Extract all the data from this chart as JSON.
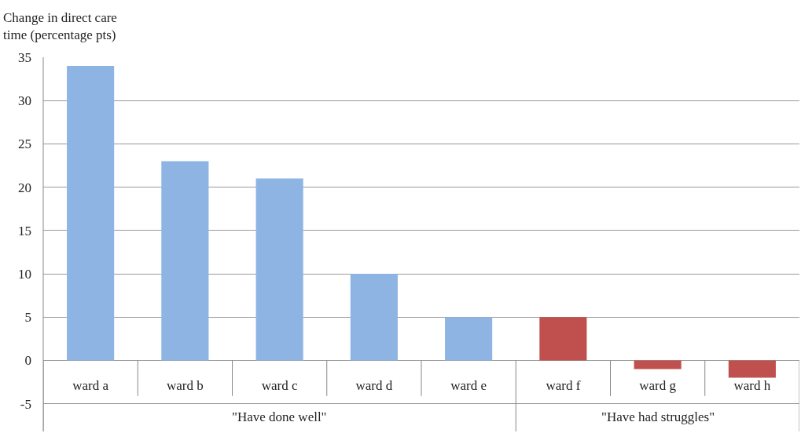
{
  "chart_data": {
    "type": "bar",
    "ylabel": "Change in direct care\ntime (percentage pts)",
    "categories": [
      "ward a",
      "ward b",
      "ward c",
      "ward d",
      "ward e",
      "ward f",
      "ward g",
      "ward h"
    ],
    "values": [
      34,
      23,
      21,
      10,
      5,
      5,
      -1,
      -2
    ],
    "colors": [
      "#8eb4e3",
      "#8eb4e3",
      "#8eb4e3",
      "#8eb4e3",
      "#8eb4e3",
      "#c0504d",
      "#c0504d",
      "#c0504d"
    ],
    "ylim": [
      -8.2,
      35
    ],
    "yticks": [
      -5,
      0,
      5,
      10,
      15,
      20,
      25,
      30,
      35
    ],
    "grid": "y",
    "annotations": [
      "\"Have done well\"",
      "\"Have had struggles\""
    ]
  }
}
